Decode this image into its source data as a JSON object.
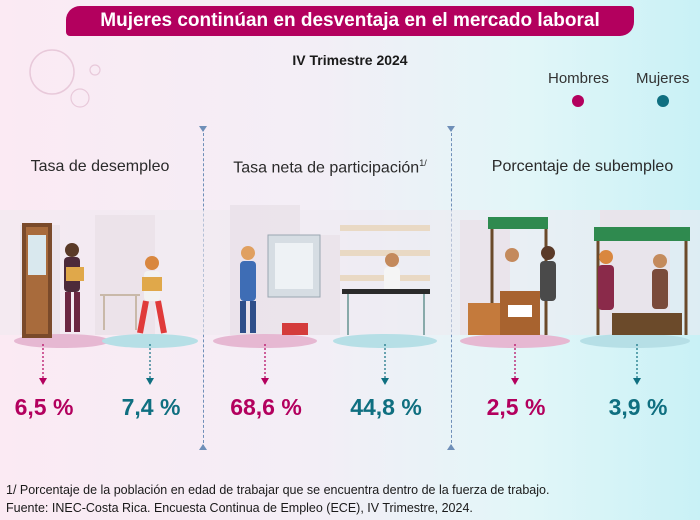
{
  "title": "Mujeres continúan en desventaja en el mercado laboral",
  "subtitle": "IV Trimestre 2024",
  "legend": {
    "men": {
      "label": "Hombres",
      "color": "#b3005e"
    },
    "women": {
      "label": "Mujeres",
      "color": "#0f6f80"
    }
  },
  "chart_data": {
    "type": "table",
    "title": "Mujeres continúan en desventaja en el mercado laboral",
    "subtitle": "IV Trimestre 2024",
    "series": [
      {
        "name": "Hombres",
        "values": [
          6.5,
          68.6,
          2.5
        ]
      },
      {
        "name": "Mujeres",
        "values": [
          7.4,
          44.8,
          3.9
        ]
      }
    ],
    "categories": [
      "Tasa de desempleo",
      "Tasa neta de participación",
      "Porcentaje de subempleo"
    ],
    "unit": "%"
  },
  "indicators": [
    {
      "label": "Tasa de desempleo",
      "sup": "",
      "men": "6,5 %",
      "women": "7,4 %"
    },
    {
      "label": "Tasa neta de participación",
      "sup": "1/",
      "men": "68,6 %",
      "women": "44,8 %"
    },
    {
      "label": "Porcentaje de subempleo",
      "sup": "",
      "men": "2,5 %",
      "women": "3,9 %"
    }
  ],
  "footnote": "1/ Porcentaje de la población en edad de trabajar que se encuentra dentro de la fuerza de trabajo.",
  "source": "Fuente: INEC-Costa Rica. Encuesta Continua de Empleo (ECE), IV Trimestre, 2024."
}
